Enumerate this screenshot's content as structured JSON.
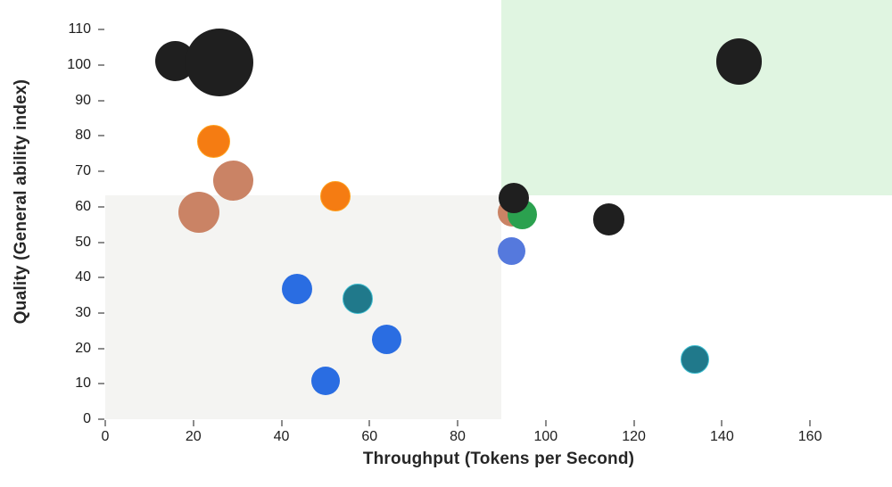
{
  "chart_data": {
    "type": "scatter",
    "variant": "bubble",
    "title": "",
    "xlabel": "Throughput (Tokens per Second)",
    "ylabel": "Quality (General ability index)",
    "xlim": [
      0,
      178.6
    ],
    "ylim": [
      0,
      118.4
    ],
    "x_ticks": [
      0,
      20,
      40,
      60,
      80,
      100,
      120,
      140,
      160
    ],
    "y_ticks": [
      0,
      10,
      20,
      30,
      40,
      50,
      60,
      70,
      80,
      90,
      100,
      110
    ],
    "grid": false,
    "legend": "none",
    "background": "#ffffff",
    "tick_color": "#8c8c8c",
    "tick_label_color": "#1d1d1d",
    "axis_title_color": "#262626",
    "regions": [
      {
        "name": "lower-left-gray",
        "x0": 0,
        "x1": 90,
        "y0": 0,
        "y1": 63.3,
        "color": "#f4f4f2"
      },
      {
        "name": "upper-right-green",
        "x0": 90,
        "x1": 178.6,
        "y0": 63.3,
        "y1": 118.4,
        "color": "#e0f5e1"
      }
    ],
    "series": [
      {
        "name": "salmon",
        "color": "#ca8365",
        "stroke": "",
        "points": [
          {
            "x": 29.1,
            "y": 67.3,
            "r": 22.5
          },
          {
            "x": 21.3,
            "y": 58.4,
            "r": 23
          },
          {
            "x": 92.3,
            "y": 58.4,
            "r": 16
          }
        ]
      },
      {
        "name": "green",
        "color": "#2ba14f",
        "stroke": "",
        "points": [
          {
            "x": 94.6,
            "y": 57.9,
            "r": 16.5
          }
        ]
      },
      {
        "name": "cornflower",
        "color": "#5579dd",
        "stroke": "",
        "points": [
          {
            "x": 92.2,
            "y": 47.4,
            "r": 15.5
          }
        ]
      },
      {
        "name": "blue",
        "color": "#2a6de2",
        "stroke": "",
        "points": [
          {
            "x": 43.6,
            "y": 36.8,
            "r": 17
          },
          {
            "x": 63.8,
            "y": 22.6,
            "r": 16.5
          },
          {
            "x": 50.0,
            "y": 10.8,
            "r": 16
          }
        ]
      },
      {
        "name": "teal",
        "color": "#20798b",
        "stroke": "#3fbfd2",
        "points": [
          {
            "x": 57.4,
            "y": 34.1,
            "r": 17
          },
          {
            "x": 133.9,
            "y": 16.9,
            "r": 16
          }
        ]
      },
      {
        "name": "orange",
        "color": "#f57c12",
        "stroke": "#ffa21f",
        "points": [
          {
            "x": 24.7,
            "y": 78.5,
            "r": 18.5
          },
          {
            "x": 52.2,
            "y": 63.0,
            "r": 17
          }
        ]
      },
      {
        "name": "black",
        "color": "#1f1f1f",
        "stroke": "",
        "points": [
          {
            "x": 15.9,
            "y": 101.2,
            "r": 22.5
          },
          {
            "x": 26.0,
            "y": 100.8,
            "r": 38
          },
          {
            "x": 92.8,
            "y": 62.5,
            "r": 17
          },
          {
            "x": 114.3,
            "y": 56.5,
            "r": 17.8
          },
          {
            "x": 143.9,
            "y": 101.0,
            "r": 25.7
          }
        ]
      }
    ]
  }
}
